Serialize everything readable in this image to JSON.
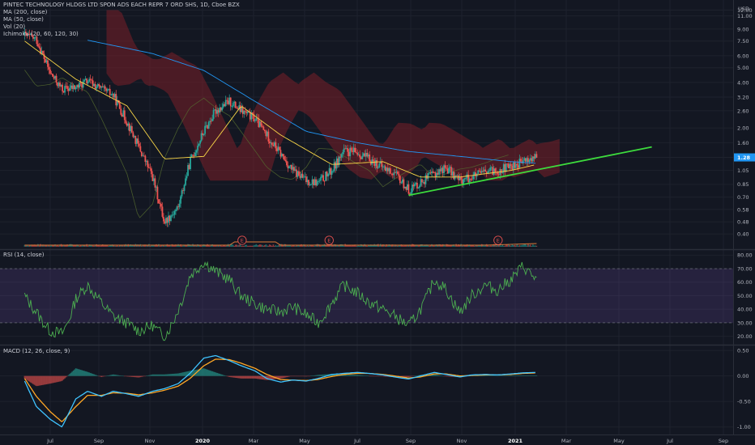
{
  "header": {
    "title": "PINTEC TECHNOLOGY HLDGS LTD SPON ADS EACH REPR 7 ORD SHS, 1D, Cboe BZX",
    "currency": "USD",
    "indicators": [
      "MA (200, close)",
      "MA (50, close)",
      "Vol (20)",
      "Ichimoku (20, 60, 120, 30)"
    ]
  },
  "rsi_pane": {
    "label": "RSI (14, close)",
    "ticks": [
      "80.00",
      "70.00",
      "60.00",
      "50.00",
      "40.00",
      "30.00",
      "20.00"
    ]
  },
  "macd_pane": {
    "label": "MACD (12, 26, close, 9)",
    "ticks": [
      "0.50",
      "0.00",
      "-0.50",
      "-1.00"
    ]
  },
  "x_axis": {
    "labels": [
      "Jul",
      "Sep",
      "Nov",
      "2020",
      "Mar",
      "May",
      "Jul",
      "Sep",
      "Nov",
      "2021",
      "Mar",
      "May",
      "Jul",
      "Sep"
    ]
  },
  "earnings_marker": "E",
  "colors": {
    "background": "#131722",
    "up": "#26a69a",
    "down": "#ef5350",
    "ma200": "#2196f3",
    "ma50": "#f7d547",
    "cloud": "#7a1f28",
    "trendline": "#3ddc3d",
    "rsi_line": "#4caf50",
    "rsi_band": "#7e57c2",
    "macd_line": "#40c4ff",
    "signal_line": "#ffa726"
  },
  "chart_data": [
    {
      "type": "line",
      "title": "PINTEC TECHNOLOGY HLDGS LTD SPON ADS EACH REPR 7 ORD SHS, 1D, Cboe BZX",
      "ylabel": "USD",
      "y_scale": "log",
      "y_ticks": [
        "12.00",
        "11.00",
        "9.00",
        "7.50",
        "6.00",
        "5.00",
        "4.00",
        "3.20",
        "2.60",
        "2.00",
        "1.60",
        "1.28",
        "1.05",
        "0.85",
        "0.70",
        "0.58",
        "0.48",
        "0.40"
      ],
      "last_price": "1.28",
      "ylim": [
        0.35,
        13.0
      ],
      "x_labels": [
        "Jul",
        "Sep",
        "Nov",
        "2020",
        "Mar",
        "May",
        "Jul",
        "Sep",
        "Nov",
        "2021",
        "Mar",
        "May",
        "Jul",
        "Sep"
      ],
      "series": [
        {
          "x": [
            "Jun 1",
            "Jun 15",
            "Jul 1",
            "Jul 15",
            "Aug 1",
            "Aug 15",
            "Sep 1",
            "Sep 15",
            "Oct 1",
            "Oct 15",
            "Nov 1",
            "Nov 15",
            "Dec 1",
            "Dec 15",
            "2020",
            "Jan 15",
            "Feb 1",
            "Feb 15",
            "Mar 1",
            "Mar 15",
            "Apr 1",
            "Apr 15",
            "May 1",
            "May 15",
            "Jun 1",
            "Jun 15",
            "Jul 1",
            "Jul 15",
            "Aug 1",
            "Aug 15",
            "Sep 1",
            "Sep 15",
            "Oct 1",
            "Oct 15",
            "Nov 1",
            "Nov 15",
            "Dec 1",
            "Dec 15",
            "2021",
            "Jan 15",
            "Feb 1"
          ],
          "values": [
            8.2,
            7.7,
            4.6,
            3.6,
            3.7,
            4.1,
            3.6,
            3.3,
            2.2,
            1.5,
            0.95,
            0.48,
            0.6,
            1.2,
            1.9,
            2.6,
            3.0,
            2.6,
            2.3,
            1.8,
            1.35,
            1.05,
            0.9,
            0.87,
            1.05,
            1.4,
            1.38,
            1.25,
            1.1,
            1.0,
            0.78,
            0.88,
            1.0,
            1.1,
            0.9,
            0.95,
            1.02,
            1.05,
            1.12,
            1.2,
            1.28
          ]
        },
        {
          "name": "MA (200, close)",
          "x": [
            "Aug 15",
            "Nov 1",
            "2020",
            "Mar 1",
            "May 1",
            "Jul 1",
            "Sep 1",
            "Nov 1",
            "2021",
            "Feb 1"
          ],
          "values": [
            7.6,
            6.2,
            4.8,
            3.0,
            1.9,
            1.6,
            1.4,
            1.3,
            1.2,
            1.17
          ]
        },
        {
          "name": "MA (50, close)",
          "x": [
            "Jun 1",
            "Aug 1",
            "Oct 1",
            "Nov 15",
            "2020",
            "Feb 15",
            "Apr 1",
            "Jun 1",
            "Aug 1",
            "Sep 15",
            "Nov 1",
            "2021",
            "Feb 1"
          ],
          "values": [
            7.5,
            4.2,
            2.8,
            1.25,
            1.3,
            2.8,
            1.8,
            1.15,
            1.2,
            0.95,
            0.95,
            1.05,
            1.15
          ]
        },
        {
          "name": "Trendline",
          "x": [
            "Sep 1",
            "Jun 15"
          ],
          "values": [
            0.72,
            1.5
          ]
        }
      ]
    },
    {
      "type": "line",
      "title": "RSI (14, close)",
      "ylim": [
        15,
        82
      ],
      "y_ticks": [
        "80.00",
        "70.00",
        "60.00",
        "50.00",
        "40.00",
        "30.00",
        "20.00"
      ],
      "series": [
        {
          "name": "RSI (14, close)",
          "x": [
            "Jun 1",
            "Jun 15",
            "Jul 1",
            "Jul 15",
            "Aug 1",
            "Aug 15",
            "Sep 1",
            "Sep 15",
            "Oct 1",
            "Oct 15",
            "Nov 1",
            "Nov 15",
            "Dec 1",
            "Dec 15",
            "2020",
            "Jan 15",
            "Feb 1",
            "Feb 15",
            "Mar 1",
            "Mar 15",
            "Apr 1",
            "Apr 15",
            "May 1",
            "May 15",
            "Jun 1",
            "Jun 15",
            "Jul 1",
            "Jul 15",
            "Aug 1",
            "Aug 15",
            "Sep 1",
            "Sep 15",
            "Oct 1",
            "Oct 15",
            "Nov 1",
            "Nov 15",
            "Dec 1",
            "Dec 15",
            "2021",
            "Jan 15",
            "Feb 1"
          ],
          "values": [
            50,
            38,
            24,
            22,
            48,
            58,
            45,
            35,
            30,
            24,
            28,
            20,
            40,
            65,
            75,
            68,
            62,
            50,
            44,
            40,
            38,
            42,
            36,
            30,
            45,
            58,
            52,
            45,
            40,
            35,
            28,
            40,
            62,
            55,
            38,
            50,
            58,
            54,
            62,
            72,
            62
          ]
        }
      ]
    },
    {
      "type": "line",
      "title": "MACD (12, 26, close, 9)",
      "ylim": [
        -1.1,
        0.55
      ],
      "y_ticks": [
        "0.50",
        "0.00",
        "-0.50",
        "-1.00"
      ],
      "series": [
        {
          "name": "MACD",
          "x": [
            "Jun 1",
            "Jun 15",
            "Jul 1",
            "Jul 15",
            "Aug 1",
            "Aug 15",
            "Sep 1",
            "Sep 15",
            "Oct 1",
            "Oct 15",
            "Nov 1",
            "Nov 15",
            "Dec 1",
            "Dec 15",
            "2020",
            "Jan 15",
            "Feb 1",
            "Feb 15",
            "Mar 1",
            "Mar 15",
            "Apr 1",
            "Apr 15",
            "May 1",
            "May 15",
            "Jun 1",
            "Jun 15",
            "Jul 1",
            "Jul 15",
            "Aug 1",
            "Aug 15",
            "Sep 1",
            "Sep 15",
            "Oct 1",
            "Oct 15",
            "Nov 1",
            "Nov 15",
            "Dec 1",
            "Dec 15",
            "2021",
            "Jan 15",
            "Feb 1"
          ],
          "values": [
            -0.1,
            -0.6,
            -0.85,
            -1.0,
            -0.45,
            -0.3,
            -0.4,
            -0.3,
            -0.35,
            -0.4,
            -0.3,
            -0.25,
            -0.15,
            0.05,
            0.35,
            0.4,
            0.3,
            0.2,
            0.1,
            -0.05,
            -0.12,
            -0.08,
            -0.1,
            -0.05,
            0.03,
            0.05,
            0.07,
            0.05,
            0.02,
            -0.02,
            -0.06,
            0.0,
            0.07,
            0.03,
            -0.02,
            0.02,
            0.03,
            0.02,
            0.04,
            0.06,
            0.07
          ]
        },
        {
          "name": "Signal",
          "x": [
            "Jun 1",
            "Jun 15",
            "Jul 1",
            "Jul 15",
            "Aug 1",
            "Aug 15",
            "Sep 1",
            "Sep 15",
            "Oct 1",
            "Oct 15",
            "Nov 1",
            "Nov 15",
            "Dec 1",
            "Dec 15",
            "2020",
            "Jan 15",
            "Feb 1",
            "Feb 15",
            "Mar 1",
            "Mar 15",
            "Apr 1",
            "Apr 15",
            "May 1",
            "May 15",
            "Jun 1",
            "Jun 15",
            "Jul 1",
            "Jul 15",
            "Aug 1",
            "Aug 15",
            "Sep 1",
            "Sep 15",
            "Oct 1",
            "Oct 15",
            "Nov 1",
            "Nov 15",
            "Dec 1",
            "Dec 15",
            "2021",
            "Jan 15",
            "Feb 1"
          ],
          "values": [
            -0.05,
            -0.4,
            -0.7,
            -0.9,
            -0.6,
            -0.38,
            -0.38,
            -0.33,
            -0.34,
            -0.37,
            -0.33,
            -0.28,
            -0.2,
            -0.05,
            0.2,
            0.33,
            0.32,
            0.25,
            0.15,
            0.03,
            -0.07,
            -0.08,
            -0.09,
            -0.07,
            -0.01,
            0.03,
            0.05,
            0.05,
            0.03,
            0.0,
            -0.04,
            -0.02,
            0.04,
            0.04,
            0.0,
            0.01,
            0.02,
            0.02,
            0.03,
            0.05,
            0.06
          ]
        }
      ]
    }
  ]
}
